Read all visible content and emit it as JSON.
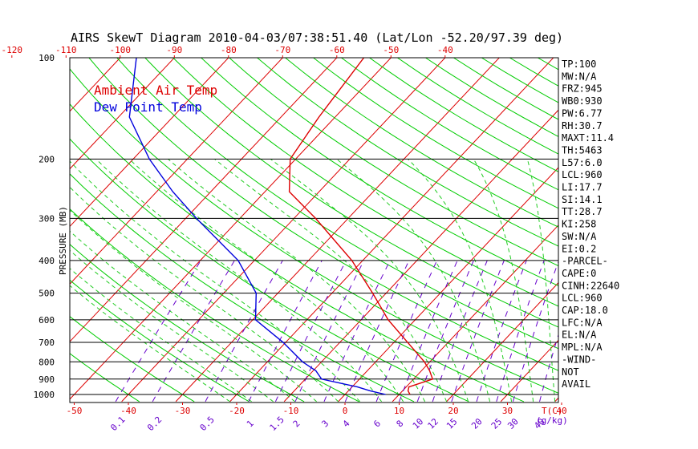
{
  "title": "AIRS SkewT Diagram 2010-04-03/07:38:51.40 (Lat/Lon -52.20/97.39 deg)",
  "legend": [
    {
      "label": "Ambient Air Temp",
      "color": "#dd0000"
    },
    {
      "label": "Dew Point Temp",
      "color": "#0000dd"
    }
  ],
  "colors": {
    "isotherm": "#dd0000",
    "dry_adiabat": "#00cc00",
    "moist_adiabat": "#22cc22",
    "mixing_ratio": "#6600cc",
    "isobar": "#000000",
    "axis_text_top": "#dd0000",
    "axis_text_bottom": "#dd0000",
    "mixing_ratio_text": "#6600cc"
  },
  "chart_data": {
    "type": "line",
    "y_axis": {
      "label": "PRESSURE (MB)",
      "scale": "log",
      "ticks": [
        100,
        200,
        300,
        400,
        500,
        600,
        700,
        800,
        900,
        1000
      ],
      "range": [
        100,
        1050
      ]
    },
    "top_axis": {
      "ticks": [
        -120,
        -110,
        -100,
        -90,
        -80,
        -70,
        -60,
        -50,
        -40
      ]
    },
    "bottom_axis": {
      "ticks": [
        -50,
        -40,
        -30,
        -20,
        -10,
        0,
        10,
        20,
        30,
        40
      ],
      "unit_label": "T(C)"
    },
    "mixing_ratio_labels": [
      "0.1",
      "0.2",
      "0.5",
      "1",
      "1.5",
      "2",
      "3",
      "4",
      "6",
      "8",
      "10",
      "12",
      "15",
      "20",
      "25",
      "30",
      "40"
    ],
    "mixing_ratio_unit": "(g/kg)",
    "series": [
      {
        "name": "Ambient Air Temp",
        "points": [
          {
            "p": 1000,
            "t": 12.0
          },
          {
            "p": 975,
            "t": 11.0
          },
          {
            "p": 950,
            "t": 10.5
          },
          {
            "p": 900,
            "t": 13.5
          },
          {
            "p": 850,
            "t": 11.5
          },
          {
            "p": 800,
            "t": 9.0
          },
          {
            "p": 700,
            "t": 2.5
          },
          {
            "p": 600,
            "t": -5.0
          },
          {
            "p": 500,
            "t": -12.5
          },
          {
            "p": 400,
            "t": -22.0
          },
          {
            "p": 300,
            "t": -36.0
          },
          {
            "p": 250,
            "t": -45.5
          },
          {
            "p": 200,
            "t": -51.0
          },
          {
            "p": 150,
            "t": -53.0
          },
          {
            "p": 100,
            "t": -55.0
          }
        ]
      },
      {
        "name": "Dew Point Temp",
        "points": [
          {
            "p": 1000,
            "t": 7.5
          },
          {
            "p": 975,
            "t": 4.0
          },
          {
            "p": 950,
            "t": 1.0
          },
          {
            "p": 900,
            "t": -7.0
          },
          {
            "p": 850,
            "t": -9.5
          },
          {
            "p": 800,
            "t": -13.5
          },
          {
            "p": 700,
            "t": -20.5
          },
          {
            "p": 600,
            "t": -29.5
          },
          {
            "p": 500,
            "t": -34.0
          },
          {
            "p": 400,
            "t": -43.0
          },
          {
            "p": 300,
            "t": -58.0
          },
          {
            "p": 250,
            "t": -67.0
          },
          {
            "p": 200,
            "t": -77.0
          },
          {
            "p": 150,
            "t": -88.0
          },
          {
            "p": 100,
            "t": -97.0
          }
        ]
      }
    ]
  },
  "indices": [
    "TP:100",
    "MW:N/A",
    "FRZ:945",
    "WB0:930",
    "PW:6.77",
    "RH:30.7",
    "MAXT:11.4",
    "TH:5463",
    "L57:6.0",
    "LCL:960",
    "LI:17.7",
    "SI:14.1",
    "TT:28.7",
    "KI:258",
    "SW:N/A",
    "EI:0.2",
    "-PARCEL-",
    "CAPE:0",
    "CINH:22640",
    "LCL:960",
    "CAP:18.0",
    "LFC:N/A",
    "EL:N/A",
    "MPL:N/A",
    "-WIND-",
    "NOT",
    "AVAIL"
  ]
}
